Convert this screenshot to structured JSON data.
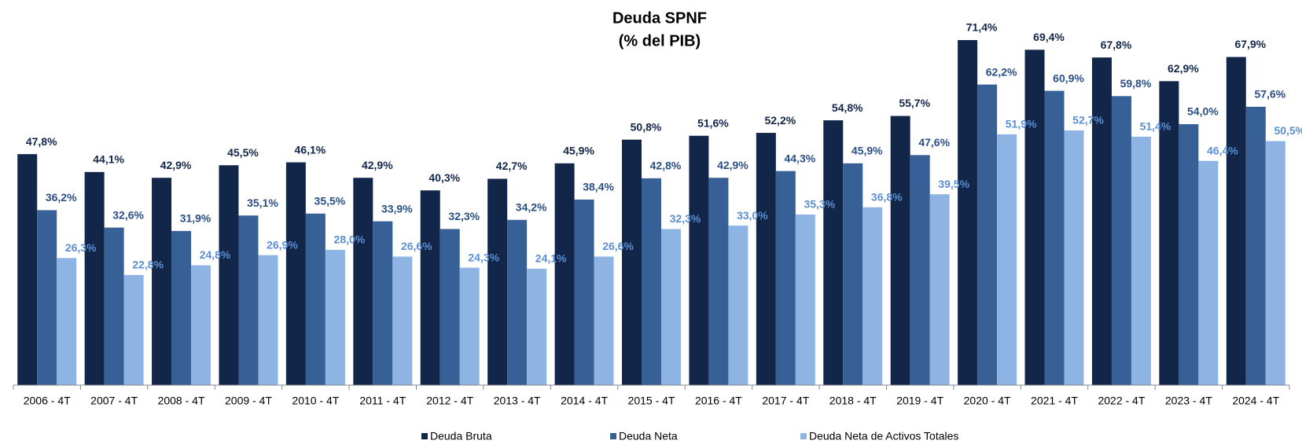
{
  "chart_data": {
    "type": "bar",
    "title": "Deuda SPNF",
    "subtitle": "(% del PIB)",
    "categories": [
      "2006 - 4T",
      "2007 - 4T",
      "2008 - 4T",
      "2009 - 4T",
      "2010 - 4T",
      "2011 - 4T",
      "2012 - 4T",
      "2013 - 4T",
      "2014 - 4T",
      "2015 - 4T",
      "2016 - 4T",
      "2017 - 4T",
      "2018 - 4T",
      "2019 - 4T",
      "2020 - 4T",
      "2021 - 4T",
      "2022 - 4T",
      "2023 - 4T",
      "2024 - 4T"
    ],
    "series": [
      {
        "name": "Deuda Bruta",
        "color": "#12264a",
        "label_color": "#12264a",
        "values": [
          47.8,
          44.1,
          42.9,
          45.5,
          46.1,
          42.9,
          40.3,
          42.7,
          45.9,
          50.8,
          51.6,
          52.2,
          54.8,
          55.7,
          71.4,
          69.4,
          67.8,
          62.9,
          67.9
        ],
        "value_labels": [
          "47,8%",
          "44,1%",
          "42,9%",
          "45,5%",
          "46,1%",
          "42,9%",
          "40,3%",
          "42,7%",
          "45,9%",
          "50,8%",
          "51,6%",
          "52,2%",
          "54,8%",
          "55,7%",
          "71,4%",
          "69,4%",
          "67,8%",
          "62,9%",
          "67,9%"
        ]
      },
      {
        "name": "Deuda Neta",
        "color": "#376096",
        "label_color": "#2a4f85",
        "values": [
          36.2,
          32.6,
          31.9,
          35.1,
          35.5,
          33.9,
          32.3,
          34.2,
          38.4,
          42.8,
          42.9,
          44.3,
          45.9,
          47.6,
          62.2,
          60.9,
          59.8,
          54.0,
          57.6
        ],
        "value_labels": [
          "36,2%",
          "32,6%",
          "31,9%",
          "35,1%",
          "35,5%",
          "33,9%",
          "32,3%",
          "34,2%",
          "38,4%",
          "42,8%",
          "42,9%",
          "44,3%",
          "45,9%",
          "47,6%",
          "62,2%",
          "60,9%",
          "59,8%",
          "54,0%",
          "57,6%"
        ]
      },
      {
        "name": "Deuda Neta de Activos Totales",
        "color": "#8eb4e3",
        "label_color": "#5b8fd1",
        "values": [
          26.3,
          22.8,
          24.8,
          26.9,
          28.0,
          26.6,
          24.3,
          24.1,
          26.6,
          32.3,
          33.0,
          35.3,
          36.8,
          39.5,
          51.9,
          52.7,
          51.4,
          46.4,
          50.5
        ],
        "value_labels": [
          "26,3%",
          "22,8%",
          "24,8%",
          "26,9%",
          "28,0%",
          "26,6%",
          "24,3%",
          "24,1%",
          "26,6%",
          "32,3%",
          "33,0%",
          "35,3%",
          "36,8%",
          "39,5%",
          "51,9%",
          "52,7%",
          "51,4%",
          "46,4%",
          "50,5%"
        ]
      }
    ]
  }
}
